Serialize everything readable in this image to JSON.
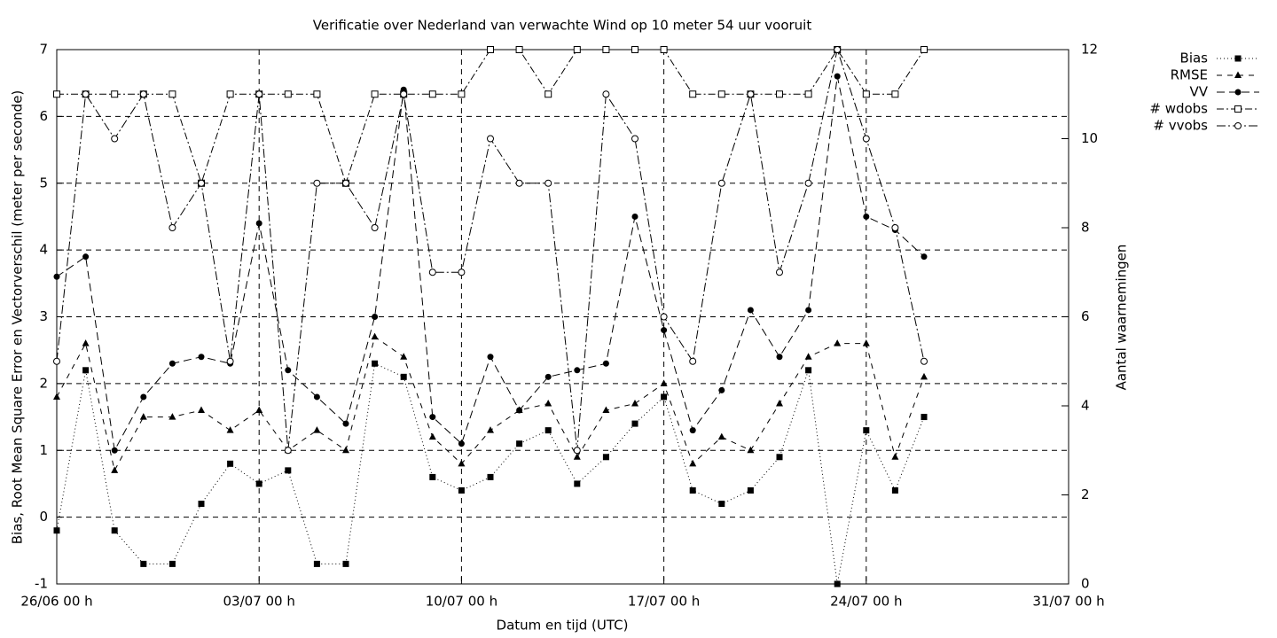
{
  "chart_data": {
    "type": "line",
    "title": "Verificatie over Nederland van verwachte Wind op 10 meter 54 uur vooruit",
    "x_label": "Datum en tijd (UTC)",
    "y_label": "Bias, Root Mean Square Error en Vectorverschil (meter per seconde)",
    "y2_label": "Aantal waarnemingen",
    "x": [
      0,
      1,
      2,
      3,
      4,
      5,
      6,
      7,
      8,
      9,
      10,
      11,
      12,
      13,
      14,
      15,
      16,
      17,
      18,
      19,
      20,
      21,
      22,
      23,
      24,
      25,
      26,
      27,
      28,
      29,
      30
    ],
    "xlim": [
      0,
      35
    ],
    "xticks": [
      {
        "value": 0,
        "label": "26/06 00 h"
      },
      {
        "value": 7,
        "label": "03/07 00 h"
      },
      {
        "value": 14,
        "label": "10/07 00 h"
      },
      {
        "value": 21,
        "label": "17/07 00 h"
      },
      {
        "value": 28,
        "label": "24/07 00 h"
      },
      {
        "value": 35,
        "label": "31/07 00 h"
      }
    ],
    "ylim": [
      -1,
      7
    ],
    "yticks": [
      -1,
      0,
      1,
      2,
      3,
      4,
      5,
      6,
      7
    ],
    "y2lim": [
      0,
      12
    ],
    "y2ticks": [
      0,
      2,
      4,
      6,
      8,
      10,
      12
    ],
    "grid": true,
    "legend": "top-right",
    "series": [
      {
        "name": "Bias",
        "color": "#000000",
        "marker": "square",
        "dash": "1 3",
        "axis": "y",
        "values": [
          -0.2,
          2.2,
          -0.2,
          -0.7,
          -0.7,
          0.2,
          0.8,
          0.5,
          0.7,
          -0.7,
          -0.7,
          2.3,
          2.1,
          0.6,
          0.4,
          0.6,
          1.1,
          1.3,
          0.5,
          0.9,
          1.4,
          1.8,
          0.4,
          0.2,
          0.4,
          0.9,
          2.2,
          -1.0,
          1.3,
          0.4,
          1.5
        ]
      },
      {
        "name": "RMSE",
        "color": "#000000",
        "marker": "triangle",
        "dash": "6 6",
        "axis": "y",
        "values": [
          1.8,
          2.6,
          0.7,
          1.5,
          1.5,
          1.6,
          1.3,
          1.6,
          1.0,
          1.3,
          1.0,
          2.7,
          2.4,
          1.2,
          0.8,
          1.3,
          1.6,
          1.7,
          0.9,
          1.6,
          1.7,
          2.0,
          0.8,
          1.2,
          1.0,
          1.7,
          2.4,
          2.6,
          2.6,
          0.9,
          2.1
        ]
      },
      {
        "name": "VV",
        "color": "#000000",
        "marker": "circle",
        "dash": "9 5",
        "axis": "y",
        "values": [
          3.6,
          3.9,
          1.0,
          1.8,
          2.3,
          2.4,
          2.3,
          4.4,
          2.2,
          1.8,
          1.4,
          3.0,
          6.4,
          1.5,
          1.1,
          2.4,
          1.6,
          2.1,
          2.2,
          2.3,
          4.5,
          2.8,
          1.3,
          1.9,
          3.1,
          2.4,
          3.1,
          6.6,
          4.5,
          4.3,
          3.9
        ]
      },
      {
        "name": "# wdobs",
        "color": "#000000",
        "marker": "open-square",
        "dash": "8 3 2 3",
        "axis": "y2",
        "values": [
          11,
          11,
          11,
          11,
          11,
          9,
          11,
          11,
          11,
          11,
          9,
          11,
          11,
          11,
          11,
          12,
          12,
          11,
          12,
          12,
          12,
          12,
          11,
          11,
          11,
          11,
          11,
          12,
          11,
          11,
          12
        ]
      },
      {
        "name": "# vvobs",
        "color": "#000000",
        "marker": "open-circle",
        "dash": "10 3 2 3",
        "axis": "y2",
        "values": [
          5,
          11,
          10,
          11,
          8,
          9,
          5,
          11,
          3,
          9,
          9,
          8,
          11,
          7,
          7,
          10,
          9,
          9,
          3,
          11,
          10,
          6,
          5,
          9,
          11,
          7,
          9,
          12,
          10,
          8,
          5
        ]
      }
    ]
  }
}
